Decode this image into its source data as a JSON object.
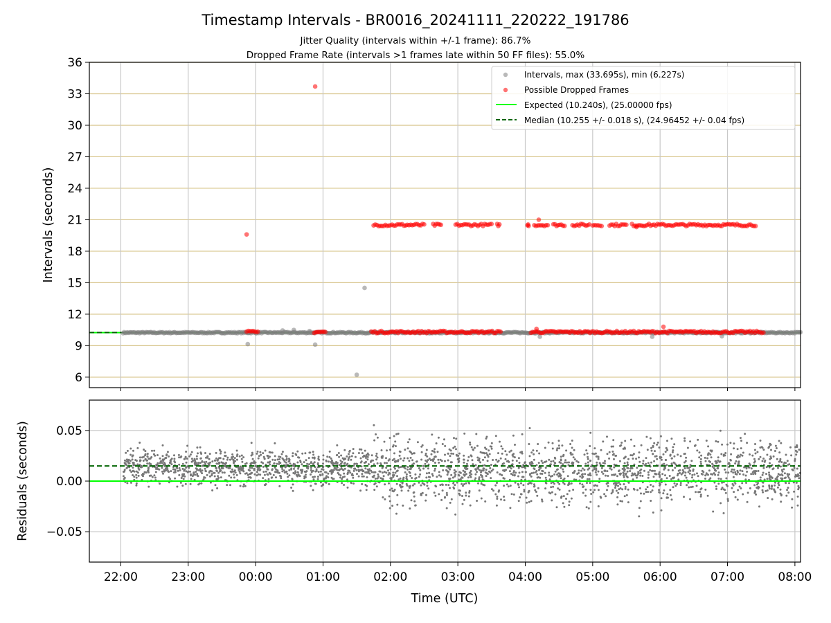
{
  "chart_data": [
    {
      "type": "scatter",
      "title": "Timestamp Intervals - BR0016_20241111_220222_191786",
      "subtitle_lines": [
        "Jitter Quality (intervals within +/-1 frame): 86.7%",
        "Dropped Frame Rate (intervals >1 frames late within 50 FF files): 55.0%"
      ],
      "xlabel": "",
      "ylabel": "Intervals (seconds)",
      "x_axis": "time (UTC), hours after 22:00 on day 1",
      "xlim": [
        "21:32",
        "08:05"
      ],
      "ylim": [
        5,
        36
      ],
      "yticks": [
        6,
        9,
        12,
        15,
        18,
        21,
        24,
        27,
        30,
        33,
        36
      ],
      "grid": true,
      "legend_position": "top-right",
      "legend": [
        "Intervals, max (33.695s), min (6.227s)",
        "Possible Dropped Frames",
        "Expected (10.240s), (25.00000 fps)",
        "Median (10.255 +/- 0.018 s), (24.96452 +/- 0.04 fps)"
      ],
      "colors": {
        "intervals": "#808080",
        "dropped": "#ff0000",
        "expected": "#00ff00",
        "median": "#006400",
        "hgrid": "#d7c48a",
        "vgrid": "#c8c8c8"
      },
      "series": [
        {
          "name": "Intervals, max (33.695s), min (6.227s)",
          "x_range": [
            "22:02",
            "08:05"
          ],
          "baseline_y": 10.24,
          "points": [
            {
              "x": "23:53",
              "y": 9.15
            },
            {
              "x": "00:53",
              "y": 9.1
            },
            {
              "x": "01:30",
              "y": 6.227
            },
            {
              "x": "01:37",
              "y": 14.5
            },
            {
              "x": "00:24",
              "y": 10.45
            },
            {
              "x": "00:34",
              "y": 10.5
            },
            {
              "x": "00:48",
              "y": 10.4
            },
            {
              "x": "04:13",
              "y": 9.85
            },
            {
              "x": "05:53",
              "y": 9.85
            },
            {
              "x": "06:55",
              "y": 9.9
            }
          ]
        },
        {
          "name": "Possible Dropped Frames",
          "points": [
            {
              "x": "00:53",
              "y": 33.695
            },
            {
              "x": "23:52",
              "y": 19.6
            },
            {
              "x": "04:12",
              "y": 21.0
            },
            {
              "x": "05:39",
              "y": 20.3
            },
            {
              "x": "06:03",
              "y": 10.8
            },
            {
              "x": "04:10",
              "y": 10.6
            }
          ],
          "bands": [
            {
              "y": 20.5,
              "ranges": [
                [
                  "01:45",
                  "02:30"
                ],
                [
                  "02:38",
                  "02:45"
                ],
                [
                  "02:58",
                  "03:30"
                ],
                [
                  "03:35",
                  "03:37"
                ],
                [
                  "04:02",
                  "04:03"
                ],
                [
                  "04:08",
                  "04:20"
                ],
                [
                  "04:25",
                  "04:35"
                ],
                [
                  "04:42",
                  "04:57"
                ],
                [
                  "05:00",
                  "05:08"
                ],
                [
                  "05:15",
                  "05:30"
                ],
                [
                  "05:35",
                  "07:25"
                ]
              ]
            },
            {
              "y": 10.3,
              "ranges": [
                [
                  "23:52",
                  "00:02"
                ],
                [
                  "00:52",
                  "01:02"
                ],
                [
                  "01:43",
                  "03:38"
                ],
                [
                  "04:05",
                  "07:32"
                ]
              ]
            }
          ]
        },
        {
          "name": "Expected (10.240s), (25.00000 fps)",
          "y": 10.24
        },
        {
          "name": "Median (10.255 +/- 0.018 s), (24.96452 +/- 0.04 fps)",
          "y": 10.255
        }
      ]
    },
    {
      "type": "scatter",
      "xlabel": "Time (UTC)",
      "ylabel": "Residuals (seconds)",
      "xlim": [
        "21:32",
        "08:05"
      ],
      "ylim": [
        -0.08,
        0.08
      ],
      "yticks": [
        -0.05,
        0.0,
        0.05
      ],
      "ytick_labels": [
        "−0.05",
        "0.00",
        "0.05"
      ],
      "xticks": [
        "22:00",
        "23:00",
        "00:00",
        "01:00",
        "02:00",
        "03:00",
        "04:00",
        "05:00",
        "06:00",
        "07:00",
        "08:00"
      ],
      "grid": true,
      "colors": {
        "points": "#777777",
        "expected": "#00ff00",
        "median": "#006400",
        "grid": "#c8c8c8"
      },
      "series": [
        {
          "name": "residuals",
          "x_range": [
            "22:02",
            "08:05"
          ],
          "mean_by_period": [
            {
              "from": "22:02",
              "to": "23:50",
              "mean": 0.014,
              "spread": 0.012
            },
            {
              "from": "23:50",
              "to": "01:45",
              "mean": 0.013,
              "spread": 0.013
            },
            {
              "from": "01:45",
              "to": "08:05",
              "mean": 0.01,
              "spread": 0.022
            }
          ]
        },
        {
          "name": "expected",
          "y": 0.0
        },
        {
          "name": "median",
          "y": 0.015
        }
      ]
    }
  ]
}
